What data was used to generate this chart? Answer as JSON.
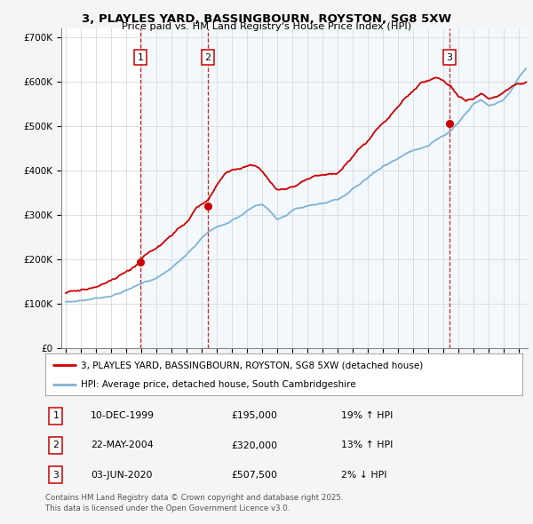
{
  "title": "3, PLAYLES YARD, BASSINGBOURN, ROYSTON, SG8 5XW",
  "subtitle": "Price paid vs. HM Land Registry's House Price Index (HPI)",
  "ylim": [
    0,
    720000
  ],
  "yticks": [
    0,
    100000,
    200000,
    300000,
    400000,
    500000,
    600000,
    700000
  ],
  "ytick_labels": [
    "£0",
    "£100K",
    "£200K",
    "£300K",
    "£400K",
    "£500K",
    "£600K",
    "£700K"
  ],
  "background_color": "#f5f5f5",
  "plot_bg_color": "#ffffff",
  "sale_color": "#cc0000",
  "hpi_color": "#7fb3d3",
  "vline_color": "#cc0000",
  "band_color": "#d0e4f7",
  "purchases": [
    {
      "label": "1",
      "date_num": 1999.94,
      "price": 195000,
      "pct": "19%",
      "dir": "↑",
      "date_str": "10-DEC-1999"
    },
    {
      "label": "2",
      "date_num": 2004.39,
      "price": 320000,
      "pct": "13%",
      "dir": "↑",
      "date_str": "22-MAY-2004"
    },
    {
      "label": "3",
      "date_num": 2020.42,
      "price": 507500,
      "pct": "2%",
      "dir": "↓",
      "date_str": "03-JUN-2020"
    }
  ],
  "legend_sale_label": "3, PLAYLES YARD, BASSINGBOURN, ROYSTON, SG8 5XW (detached house)",
  "legend_hpi_label": "HPI: Average price, detached house, South Cambridgeshire",
  "footer": "Contains HM Land Registry data © Crown copyright and database right 2025.\nThis data is licensed under the Open Government Licence v3.0.",
  "hpi_waypoints": [
    [
      1995.0,
      105000
    ],
    [
      1995.5,
      107000
    ],
    [
      1996.0,
      109000
    ],
    [
      1996.5,
      112000
    ],
    [
      1997.0,
      116000
    ],
    [
      1997.5,
      120000
    ],
    [
      1998.0,
      125000
    ],
    [
      1998.5,
      130000
    ],
    [
      1999.0,
      137000
    ],
    [
      1999.5,
      143000
    ],
    [
      2000.0,
      150000
    ],
    [
      2000.5,
      158000
    ],
    [
      2001.0,
      165000
    ],
    [
      2001.5,
      175000
    ],
    [
      2002.0,
      187000
    ],
    [
      2002.5,
      202000
    ],
    [
      2003.0,
      218000
    ],
    [
      2003.5,
      235000
    ],
    [
      2004.0,
      255000
    ],
    [
      2004.5,
      270000
    ],
    [
      2005.0,
      280000
    ],
    [
      2005.5,
      285000
    ],
    [
      2006.0,
      295000
    ],
    [
      2006.5,
      305000
    ],
    [
      2007.0,
      318000
    ],
    [
      2007.5,
      328000
    ],
    [
      2008.0,
      330000
    ],
    [
      2008.5,
      315000
    ],
    [
      2009.0,
      295000
    ],
    [
      2009.5,
      300000
    ],
    [
      2010.0,
      310000
    ],
    [
      2010.5,
      315000
    ],
    [
      2011.0,
      318000
    ],
    [
      2011.5,
      320000
    ],
    [
      2012.0,
      322000
    ],
    [
      2012.5,
      325000
    ],
    [
      2013.0,
      330000
    ],
    [
      2013.5,
      340000
    ],
    [
      2014.0,
      355000
    ],
    [
      2014.5,
      368000
    ],
    [
      2015.0,
      382000
    ],
    [
      2015.5,
      395000
    ],
    [
      2016.0,
      408000
    ],
    [
      2016.5,
      418000
    ],
    [
      2017.0,
      428000
    ],
    [
      2017.5,
      438000
    ],
    [
      2018.0,
      445000
    ],
    [
      2018.5,
      452000
    ],
    [
      2019.0,
      460000
    ],
    [
      2019.5,
      472000
    ],
    [
      2020.0,
      480000
    ],
    [
      2020.5,
      490000
    ],
    [
      2021.0,
      510000
    ],
    [
      2021.5,
      530000
    ],
    [
      2022.0,
      550000
    ],
    [
      2022.5,
      558000
    ],
    [
      2023.0,
      545000
    ],
    [
      2023.5,
      550000
    ],
    [
      2024.0,
      560000
    ],
    [
      2024.5,
      580000
    ],
    [
      2025.0,
      610000
    ],
    [
      2025.5,
      630000
    ]
  ],
  "sale_waypoints": [
    [
      1995.0,
      125000
    ],
    [
      1995.5,
      128000
    ],
    [
      1996.0,
      132000
    ],
    [
      1996.5,
      136000
    ],
    [
      1997.0,
      140000
    ],
    [
      1997.5,
      145000
    ],
    [
      1998.0,
      150000
    ],
    [
      1998.5,
      158000
    ],
    [
      1999.0,
      167000
    ],
    [
      1999.5,
      178000
    ],
    [
      2000.0,
      195000
    ],
    [
      2000.5,
      210000
    ],
    [
      2001.0,
      220000
    ],
    [
      2001.5,
      232000
    ],
    [
      2002.0,
      248000
    ],
    [
      2002.5,
      265000
    ],
    [
      2003.0,
      285000
    ],
    [
      2003.5,
      305000
    ],
    [
      2004.0,
      318000
    ],
    [
      2004.5,
      330000
    ],
    [
      2005.0,
      360000
    ],
    [
      2005.5,
      385000
    ],
    [
      2006.0,
      395000
    ],
    [
      2006.5,
      400000
    ],
    [
      2007.0,
      405000
    ],
    [
      2007.5,
      408000
    ],
    [
      2008.0,
      395000
    ],
    [
      2008.5,
      375000
    ],
    [
      2009.0,
      355000
    ],
    [
      2009.5,
      358000
    ],
    [
      2010.0,
      368000
    ],
    [
      2010.5,
      375000
    ],
    [
      2011.0,
      382000
    ],
    [
      2011.5,
      388000
    ],
    [
      2012.0,
      390000
    ],
    [
      2012.5,
      395000
    ],
    [
      2013.0,
      400000
    ],
    [
      2013.5,
      415000
    ],
    [
      2014.0,
      432000
    ],
    [
      2014.5,
      450000
    ],
    [
      2015.0,
      468000
    ],
    [
      2015.5,
      490000
    ],
    [
      2016.0,
      510000
    ],
    [
      2016.5,
      525000
    ],
    [
      2017.0,
      545000
    ],
    [
      2017.5,
      565000
    ],
    [
      2018.0,
      580000
    ],
    [
      2018.5,
      595000
    ],
    [
      2019.0,
      600000
    ],
    [
      2019.5,
      605000
    ],
    [
      2020.0,
      600000
    ],
    [
      2020.5,
      590000
    ],
    [
      2021.0,
      565000
    ],
    [
      2021.5,
      555000
    ],
    [
      2022.0,
      560000
    ],
    [
      2022.5,
      570000
    ],
    [
      2023.0,
      560000
    ],
    [
      2023.5,
      565000
    ],
    [
      2024.0,
      575000
    ],
    [
      2024.5,
      585000
    ],
    [
      2025.0,
      595000
    ],
    [
      2025.5,
      600000
    ]
  ]
}
